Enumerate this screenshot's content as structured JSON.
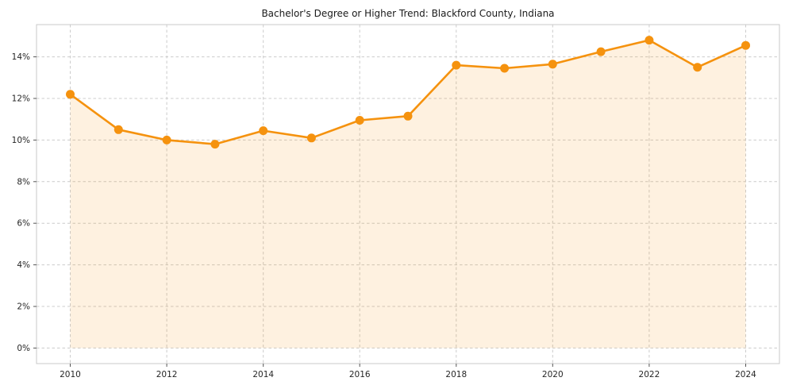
{
  "chart_data": {
    "type": "area",
    "title": "Bachelor's Degree or Higher Trend: Blackford County, Indiana",
    "x": [
      2010,
      2011,
      2012,
      2013,
      2014,
      2015,
      2016,
      2017,
      2018,
      2019,
      2020,
      2021,
      2022,
      2023,
      2024
    ],
    "values": [
      12.2,
      10.5,
      10.0,
      9.8,
      10.45,
      10.1,
      10.95,
      11.15,
      13.6,
      13.45,
      13.65,
      14.25,
      14.8,
      13.5,
      14.55
    ],
    "xlabel": "",
    "ylabel": "",
    "xlim": [
      2009.3,
      2024.7
    ],
    "ylim": [
      -0.75,
      15.55
    ],
    "xticks": [
      2010,
      2012,
      2014,
      2016,
      2018,
      2020,
      2022,
      2024
    ],
    "yticks": [
      0,
      2,
      4,
      6,
      8,
      10,
      12,
      14
    ],
    "ytick_suffix": "%",
    "grid": true,
    "grid_style": "dashed",
    "legend": "none",
    "fill_baseline": 0,
    "colors": {
      "line": "#f5920e",
      "marker": "#f5920e",
      "fill": "rgba(245,146,14,0.13)",
      "grid": "#cccccc",
      "spine": "#c9c9c9",
      "tick": "#555555",
      "tick_text": "#262626",
      "title_text": "#1a1a1a"
    }
  }
}
